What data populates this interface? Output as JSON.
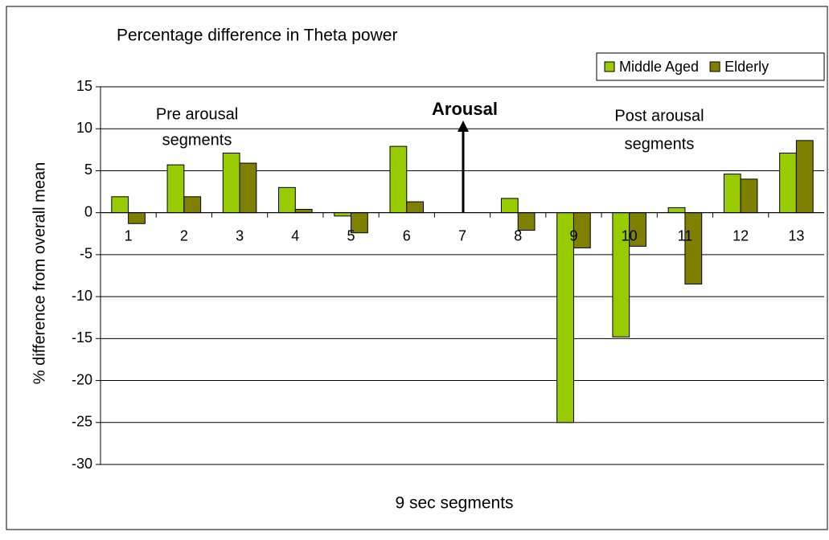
{
  "chart_data": {
    "type": "bar",
    "title": "Percentage difference in Theta power",
    "x_label": "9 sec segments",
    "y_label": "% difference from overall mean",
    "categories": [
      "1",
      "2",
      "3",
      "4",
      "5",
      "6",
      "7",
      "8",
      "9",
      "10",
      "11",
      "12",
      "13"
    ],
    "series": [
      {
        "name": "Middle Aged",
        "color": "#99cc00",
        "values": [
          1.9,
          5.7,
          7.1,
          3.0,
          -0.4,
          7.9,
          0,
          1.7,
          -25,
          -14.8,
          0.6,
          4.6,
          7.1
        ]
      },
      {
        "name": "Elderly",
        "color": "#808000",
        "values": [
          -1.3,
          1.9,
          5.9,
          0.4,
          -2.4,
          1.3,
          0,
          -2.1,
          -4.2,
          -4.0,
          -8.5,
          4.0,
          8.6
        ]
      }
    ],
    "ylim": [
      -30,
      15
    ],
    "yticks": [
      -30,
      -25,
      -20,
      -15,
      -10,
      -5,
      0,
      5,
      10,
      15
    ],
    "grid": true,
    "legend": "top-right",
    "annotations": {
      "pre": [
        "Pre arousal",
        "segments"
      ],
      "arousal": "Arousal",
      "post": [
        "Post arousal",
        "segments"
      ]
    }
  }
}
